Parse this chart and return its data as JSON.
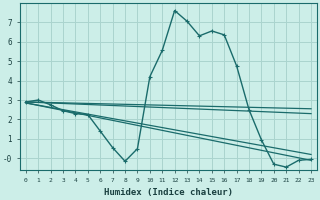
{
  "xlabel": "Humidex (Indice chaleur)",
  "bg_color": "#cceee8",
  "grid_color": "#aad4ce",
  "line_color": "#1a6b6b",
  "xlim": [
    -0.5,
    23.5
  ],
  "ylim": [
    -0.6,
    8.0
  ],
  "xticks": [
    0,
    1,
    2,
    3,
    4,
    5,
    6,
    7,
    8,
    9,
    10,
    11,
    12,
    13,
    14,
    15,
    16,
    17,
    18,
    19,
    20,
    21,
    22,
    23
  ],
  "yticks": [
    0,
    1,
    2,
    3,
    4,
    5,
    6,
    7
  ],
  "ytick_labels": [
    "-0",
    "1",
    "2",
    "3",
    "4",
    "5",
    "6",
    "7"
  ],
  "series1_x": [
    0,
    1,
    2,
    3,
    4,
    5,
    6,
    7,
    8,
    9,
    10,
    11,
    12,
    13,
    14,
    15,
    16,
    17,
    18,
    19,
    20,
    21,
    22,
    23
  ],
  "series1_y": [
    2.9,
    3.0,
    2.75,
    2.45,
    2.3,
    2.25,
    1.4,
    0.55,
    -0.15,
    0.5,
    4.2,
    5.55,
    7.6,
    7.05,
    6.3,
    6.55,
    6.35,
    4.75,
    2.5,
    0.95,
    -0.3,
    -0.45,
    -0.1,
    -0.05
  ],
  "series2_x": [
    0,
    23
  ],
  "series2_y": [
    2.9,
    2.55
  ],
  "series3_x": [
    0,
    23
  ],
  "series3_y": [
    2.9,
    2.3
  ],
  "series4_x": [
    0,
    23
  ],
  "series4_y": [
    2.85,
    0.2
  ],
  "series5_x": [
    0,
    23
  ],
  "series5_y": [
    2.85,
    -0.1
  ]
}
